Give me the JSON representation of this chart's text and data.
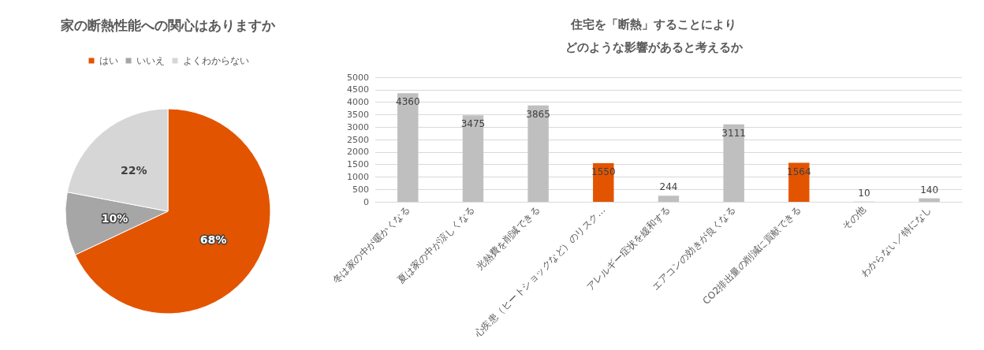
{
  "chart_data": [
    {
      "type": "pie",
      "title": "家の断熱性能への関心はありますか",
      "categories": [
        "はい",
        "いいえ",
        "よくわからない"
      ],
      "values": [
        68,
        10,
        22
      ],
      "colors": [
        "#e35400",
        "#a6a6a6",
        "#d6d6d6"
      ],
      "legend": "top",
      "value_labels": [
        "68%",
        "10%",
        "22%"
      ]
    },
    {
      "type": "bar",
      "title": "住宅を「断熱」することにより",
      "subtitle": "どのような影響があると考えるか",
      "categories": [
        "冬は家の中が暖かくなる",
        "夏は家の中が涼しくなる",
        "光熱費を削減できる",
        "心疾患（ヒートショックなど）のリスク…",
        "アレルギー症状を緩和する",
        "エアコンの効きが良くなる",
        "CO2排出量の削減に貢献できる",
        "その他",
        "わからない／特になし"
      ],
      "values": [
        4360,
        3475,
        3865,
        1550,
        244,
        3111,
        1564,
        10,
        140
      ],
      "colors": [
        "#bfbfbf",
        "#bfbfbf",
        "#bfbfbf",
        "#e35400",
        "#bfbfbf",
        "#bfbfbf",
        "#e35400",
        "#bfbfbf",
        "#bfbfbf"
      ],
      "ylim": [
        0,
        5000
      ],
      "yticks": [
        0,
        500,
        1000,
        1500,
        2000,
        2500,
        3000,
        3500,
        4000,
        4500,
        5000
      ],
      "grid": "y",
      "data_labels": true
    }
  ]
}
